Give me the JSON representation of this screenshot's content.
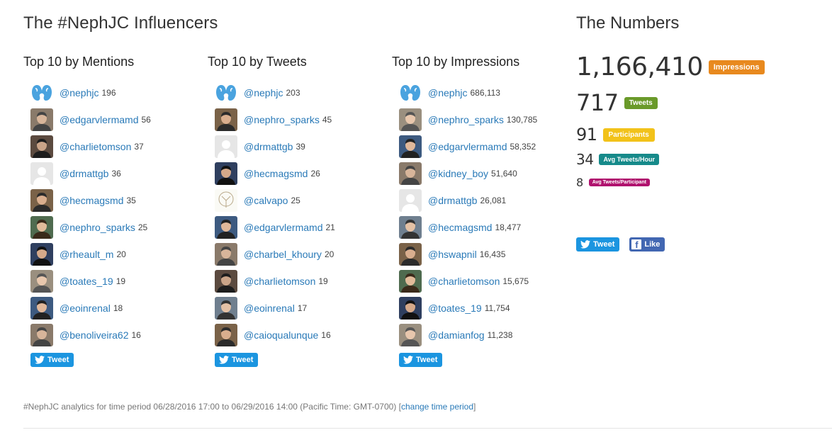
{
  "page": {
    "title": "The #NephJC Influencers",
    "numbers_title": "The Numbers"
  },
  "columns": [
    {
      "heading": "Top 10 by Mentions",
      "rows": [
        {
          "handle": "@nephjc",
          "count": "196",
          "avatar": "kidney-logo"
        },
        {
          "handle": "@edgarvlermamd",
          "count": "56",
          "avatar": "photo"
        },
        {
          "handle": "@charlietomson",
          "count": "37",
          "avatar": "photo"
        },
        {
          "handle": "@drmattgb",
          "count": "36",
          "avatar": "default"
        },
        {
          "handle": "@hecmagsmd",
          "count": "35",
          "avatar": "photo"
        },
        {
          "handle": "@nephro_sparks",
          "count": "25",
          "avatar": "photo"
        },
        {
          "handle": "@rheault_m",
          "count": "20",
          "avatar": "photo"
        },
        {
          "handle": "@toates_19",
          "count": "19",
          "avatar": "photo"
        },
        {
          "handle": "@eoinrenal",
          "count": "18",
          "avatar": "photo"
        },
        {
          "handle": "@benoliveira62",
          "count": "16",
          "avatar": "photo"
        }
      ],
      "tweet_label": "Tweet"
    },
    {
      "heading": "Top 10 by Tweets",
      "rows": [
        {
          "handle": "@nephjc",
          "count": "203",
          "avatar": "kidney-logo"
        },
        {
          "handle": "@nephro_sparks",
          "count": "45",
          "avatar": "photo"
        },
        {
          "handle": "@drmattgb",
          "count": "39",
          "avatar": "default"
        },
        {
          "handle": "@hecmagsmd",
          "count": "26",
          "avatar": "photo"
        },
        {
          "handle": "@calvapo",
          "count": "25",
          "avatar": "sketch"
        },
        {
          "handle": "@edgarvlermamd",
          "count": "21",
          "avatar": "photo"
        },
        {
          "handle": "@charbel_khoury",
          "count": "20",
          "avatar": "photo"
        },
        {
          "handle": "@charlietomson",
          "count": "19",
          "avatar": "photo"
        },
        {
          "handle": "@eoinrenal",
          "count": "17",
          "avatar": "photo"
        },
        {
          "handle": "@caioqualunque",
          "count": "16",
          "avatar": "photo"
        }
      ],
      "tweet_label": "Tweet"
    },
    {
      "heading": "Top 10 by Impressions",
      "rows": [
        {
          "handle": "@nephjc",
          "count": "686,113",
          "avatar": "kidney-logo"
        },
        {
          "handle": "@nephro_sparks",
          "count": "130,785",
          "avatar": "photo"
        },
        {
          "handle": "@edgarvlermamd",
          "count": "58,352",
          "avatar": "photo"
        },
        {
          "handle": "@kidney_boy",
          "count": "51,640",
          "avatar": "photo"
        },
        {
          "handle": "@drmattgb",
          "count": "26,081",
          "avatar": "default"
        },
        {
          "handle": "@hecmagsmd",
          "count": "18,477",
          "avatar": "photo"
        },
        {
          "handle": "@hswapnil",
          "count": "16,435",
          "avatar": "photo"
        },
        {
          "handle": "@charlietomson",
          "count": "15,675",
          "avatar": "photo"
        },
        {
          "handle": "@toates_19",
          "count": "11,754",
          "avatar": "photo"
        },
        {
          "handle": "@damianfog",
          "count": "11,238",
          "avatar": "photo"
        }
      ],
      "tweet_label": "Tweet"
    }
  ],
  "numbers": [
    {
      "value": "1,166,410",
      "label": "Impressions",
      "color": "#e8891e"
    },
    {
      "value": "717",
      "label": "Tweets",
      "color": "#6a9a2a"
    },
    {
      "value": "91",
      "label": "Participants",
      "color": "#f2c21a"
    },
    {
      "value": "34",
      "label": "Avg Tweets/Hour",
      "color": "#168a8a"
    },
    {
      "value": "8",
      "label": "Avg Tweets/Participant",
      "color": "#b0126e"
    }
  ],
  "share": {
    "tweet_label": "Tweet",
    "like_label": "Like"
  },
  "footer": {
    "text": "#NephJC analytics for time period 06/28/2016 17:00 to 06/29/2016 14:00 (Pacific Time: GMT-0700) [",
    "link": "change time period",
    "close": "]"
  },
  "colors": {
    "link": "#2a7ab8",
    "twitter": "#1b95e0",
    "facebook": "#4267b2",
    "kidney": "#4aa3df"
  }
}
